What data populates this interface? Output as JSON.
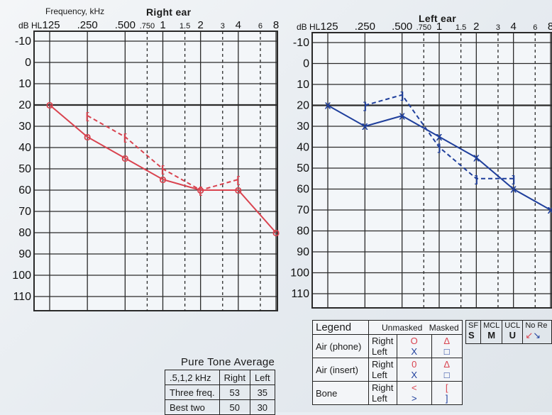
{
  "right_title": "Right ear",
  "left_title": "Left ear",
  "frequency_label": "Frequency, kHz",
  "db_label_left": "dB HL",
  "db_label_right": "dB HL",
  "right_top_ticks": [
    ".125",
    ".250",
    ".500",
    ".750",
    "1",
    "1.5",
    "2",
    "3",
    "4",
    "6",
    "8"
  ],
  "left_top_ticks": [
    ".125",
    ".250",
    ".500",
    ".750",
    "1",
    "1.5",
    "2",
    "3",
    "4",
    "6",
    "8"
  ],
  "y_ticks": [
    "-10",
    "0",
    "10",
    "20",
    "30",
    "40",
    "50",
    "60",
    "70",
    "80",
    "90",
    "100",
    "110"
  ],
  "colors": {
    "right": "#d9434f",
    "left": "#1f3f9c",
    "grid": "#2a2a2a"
  },
  "chart_data": [
    {
      "type": "line",
      "title": "Right ear",
      "xlabel": "Frequency, kHz",
      "ylabel": "dB HL",
      "x_scale": "log",
      "y_inverted": true,
      "ylim": [
        -10,
        110
      ],
      "series": [
        {
          "x": [
            0.125,
            0.25,
            0.5,
            1,
            2,
            4,
            8
          ],
          "values": [
            20,
            35,
            45,
            55,
            60,
            60,
            80
          ],
          "symbol": "O"
        },
        {
          "x": [
            0.25,
            0.5,
            1,
            2,
            4
          ],
          "values": [
            25,
            35,
            50,
            60,
            55
          ],
          "symbol": "["
        }
      ]
    },
    {
      "type": "line",
      "title": "Left ear",
      "xlabel": "Frequency, kHz",
      "ylabel": "dB HL",
      "x_scale": "log",
      "y_inverted": true,
      "ylim": [
        -10,
        110
      ],
      "series": [
        {
          "x": [
            0.125,
            0.25,
            0.5,
            1,
            2,
            4,
            8
          ],
          "values": [
            20,
            30,
            25,
            35,
            45,
            60,
            70
          ],
          "symbol": "X"
        },
        {
          "x": [
            0.25,
            0.5,
            1,
            2,
            4
          ],
          "values": [
            20,
            15,
            40,
            55,
            55
          ],
          "symbol": "]"
        }
      ]
    }
  ],
  "pta": {
    "title": "Pure Tone Average",
    "header": [
      ".5,1,2 kHz",
      "Right",
      "Left"
    ],
    "rows": [
      [
        "Three freq.",
        "53",
        "35"
      ],
      [
        "Best two",
        "50",
        "30"
      ]
    ]
  },
  "legend": {
    "title": "Legend",
    "unmasked": "Unmasked",
    "masked": "Masked",
    "rows": [
      {
        "type": "Air (phone)",
        "right": "Right",
        "left": "Left",
        "r_unmasked": "O",
        "l_unmasked": "X",
        "r_masked": "Δ",
        "l_masked": "□"
      },
      {
        "type": "Air (insert)",
        "right": "Right",
        "left": "Left",
        "r_unmasked": "0",
        "l_unmasked": "X",
        "r_masked": "Δ",
        "l_masked": "□"
      },
      {
        "type": "Bone",
        "right": "Right",
        "left": "Left",
        "r_unmasked": "<",
        "l_unmasked": ">",
        "r_masked": "[",
        "l_masked": "]"
      }
    ]
  },
  "extra": {
    "headers": [
      "SF",
      "MCL",
      "UCL",
      "No Re"
    ],
    "symbols": [
      "S",
      "M",
      "U",
      ""
    ]
  }
}
